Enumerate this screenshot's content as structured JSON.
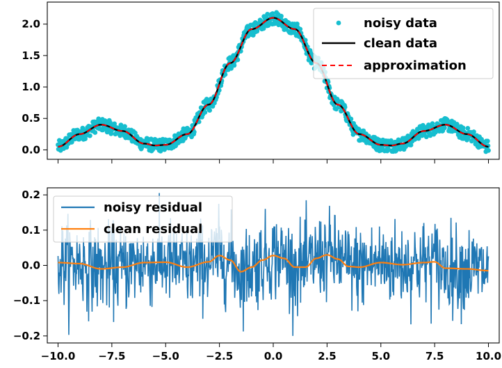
{
  "chart_data": [
    {
      "type": "scatter",
      "xlim": [
        -10.5,
        10.5
      ],
      "ylim": [
        -0.15,
        2.35
      ],
      "xticks": [
        -10.0,
        -7.5,
        -5.0,
        -2.5,
        0.0,
        2.5,
        5.0,
        7.5,
        10.0
      ],
      "xtick_labels_visible": false,
      "yticks": [
        0.0,
        0.5,
        1.0,
        1.5,
        2.0
      ],
      "ytick_labels": [
        "0.0",
        "0.5",
        "1.0",
        "1.5",
        "2.0"
      ],
      "grid": false,
      "legend_position": "upper right",
      "series": [
        {
          "name": "noisy data",
          "style": "markers",
          "color": "#17becf",
          "approx_noise_amplitude": 0.2,
          "x_range": [
            -10.0,
            10.0
          ],
          "n_points": 1000
        },
        {
          "name": "clean data",
          "style": "solid line",
          "color": "#000000",
          "x": [
            -10.0,
            -9.0,
            -8.0,
            -7.0,
            -6.0,
            -5.5,
            -5.0,
            -4.0,
            -3.0,
            -2.0,
            -1.0,
            0.0,
            1.0,
            2.0,
            3.0,
            4.0,
            5.0,
            5.5,
            6.0,
            7.0,
            8.0,
            9.0,
            10.0
          ],
          "y": [
            0.05,
            0.25,
            0.4,
            0.3,
            0.1,
            0.07,
            0.08,
            0.25,
            0.72,
            1.38,
            1.92,
            2.1,
            1.92,
            1.38,
            0.72,
            0.25,
            0.08,
            0.07,
            0.1,
            0.3,
            0.4,
            0.25,
            0.05
          ]
        },
        {
          "name": "approximation",
          "style": "dashed line",
          "color": "#ff0000",
          "x": [
            -10.0,
            -9.0,
            -8.0,
            -7.0,
            -6.0,
            -5.5,
            -5.0,
            -4.0,
            -3.0,
            -2.0,
            -1.0,
            0.0,
            1.0,
            2.0,
            3.0,
            4.0,
            5.0,
            5.5,
            6.0,
            7.0,
            8.0,
            9.0,
            10.0
          ],
          "y": [
            0.05,
            0.25,
            0.4,
            0.3,
            0.1,
            0.07,
            0.08,
            0.25,
            0.72,
            1.38,
            1.92,
            2.1,
            1.92,
            1.38,
            0.72,
            0.25,
            0.08,
            0.07,
            0.1,
            0.3,
            0.4,
            0.25,
            0.05
          ]
        }
      ]
    },
    {
      "type": "line",
      "xlim": [
        -10.5,
        10.5
      ],
      "ylim": [
        -0.22,
        0.22
      ],
      "xticks": [
        -10.0,
        -7.5,
        -5.0,
        -2.5,
        0.0,
        2.5,
        5.0,
        7.5,
        10.0
      ],
      "xtick_labels": [
        "−10.0",
        "−7.5",
        "−5.0",
        "−2.5",
        "0.0",
        "2.5",
        "5.0",
        "7.5",
        "10.0"
      ],
      "yticks": [
        -0.2,
        -0.1,
        0.0,
        0.1,
        0.2
      ],
      "ytick_labels": [
        "−0.2",
        "−0.1",
        "0.0",
        "0.1",
        "0.2"
      ],
      "grid": false,
      "legend_position": "upper left",
      "series": [
        {
          "name": "noisy residual",
          "style": "solid line",
          "color": "#1f77b4",
          "approx_std": 0.06,
          "approx_range": [
            -0.2,
            0.21
          ],
          "x_range": [
            -10.0,
            10.0
          ],
          "n_points": 1000
        },
        {
          "name": "clean residual",
          "style": "solid line",
          "color": "#ff7f0e",
          "x": [
            -10.0,
            -9.0,
            -8.0,
            -7.0,
            -6.0,
            -5.0,
            -4.0,
            -3.0,
            -2.5,
            -2.0,
            -1.5,
            -1.0,
            -0.5,
            0.0,
            0.5,
            1.0,
            1.5,
            2.0,
            2.5,
            3.0,
            3.5,
            4.0,
            5.0,
            6.0,
            7.0,
            7.5,
            8.0,
            9.0,
            10.0
          ],
          "y": [
            0.008,
            0.005,
            -0.01,
            -0.005,
            0.008,
            0.009,
            -0.005,
            0.01,
            0.028,
            0.015,
            -0.018,
            -0.005,
            0.015,
            0.028,
            0.02,
            -0.005,
            -0.005,
            0.02,
            0.03,
            0.018,
            -0.003,
            -0.005,
            0.008,
            0.002,
            0.008,
            0.01,
            -0.008,
            -0.01,
            -0.015
          ]
        }
      ]
    }
  ]
}
